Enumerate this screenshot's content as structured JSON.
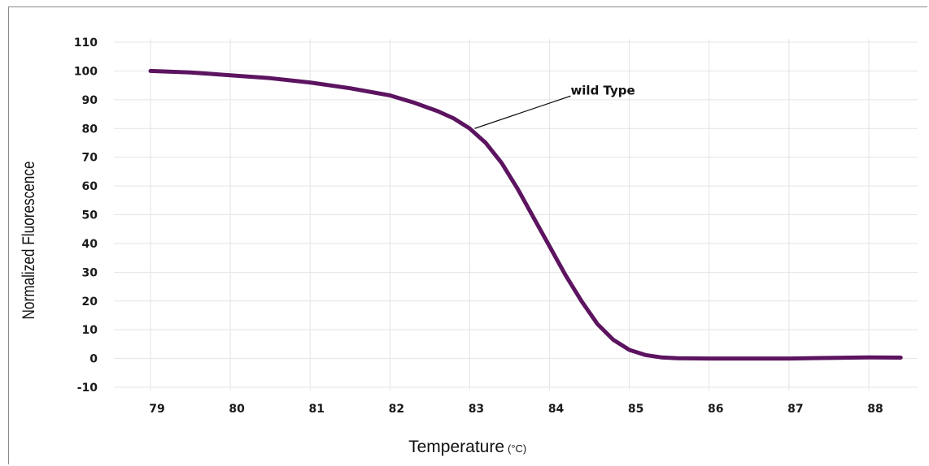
{
  "chart_data": {
    "type": "line",
    "title": "",
    "xlabel": "Temperature",
    "xlabel_unit": "(°C)",
    "ylabel": "Normalized Fluorescence",
    "xlim": [
      79,
      88.4
    ],
    "ylim": [
      -10,
      110
    ],
    "x_ticks": [
      79,
      80,
      81,
      82,
      83,
      84,
      85,
      86,
      87,
      88
    ],
    "y_ticks": [
      -10,
      0,
      10,
      20,
      30,
      40,
      50,
      60,
      70,
      80,
      90,
      100,
      110
    ],
    "grid": true,
    "legend": "none",
    "line_color": "#5c1460",
    "series": [
      {
        "x": [
          79.0,
          79.5,
          80.0,
          80.5,
          81.0,
          81.5,
          82.0,
          82.3,
          82.6,
          82.8,
          83.0,
          83.2,
          83.4,
          83.6,
          83.8,
          84.0,
          84.2,
          84.4,
          84.6,
          84.8,
          85.0,
          85.2,
          85.4,
          85.6,
          86.0,
          86.5,
          87.0,
          87.5,
          88.0,
          88.4
        ],
        "y": [
          100,
          99.5,
          98.5,
          97.5,
          96,
          94,
          91.5,
          89,
          86,
          83.5,
          80,
          75,
          68,
          59,
          49,
          39,
          29,
          20,
          12,
          6.5,
          3,
          1.2,
          0.4,
          0.1,
          0,
          0,
          0,
          0.2,
          0.4,
          0.3
        ]
      }
    ],
    "annotations": [
      {
        "text": "wild Type",
        "x": 83.0,
        "y": 80
      }
    ]
  }
}
